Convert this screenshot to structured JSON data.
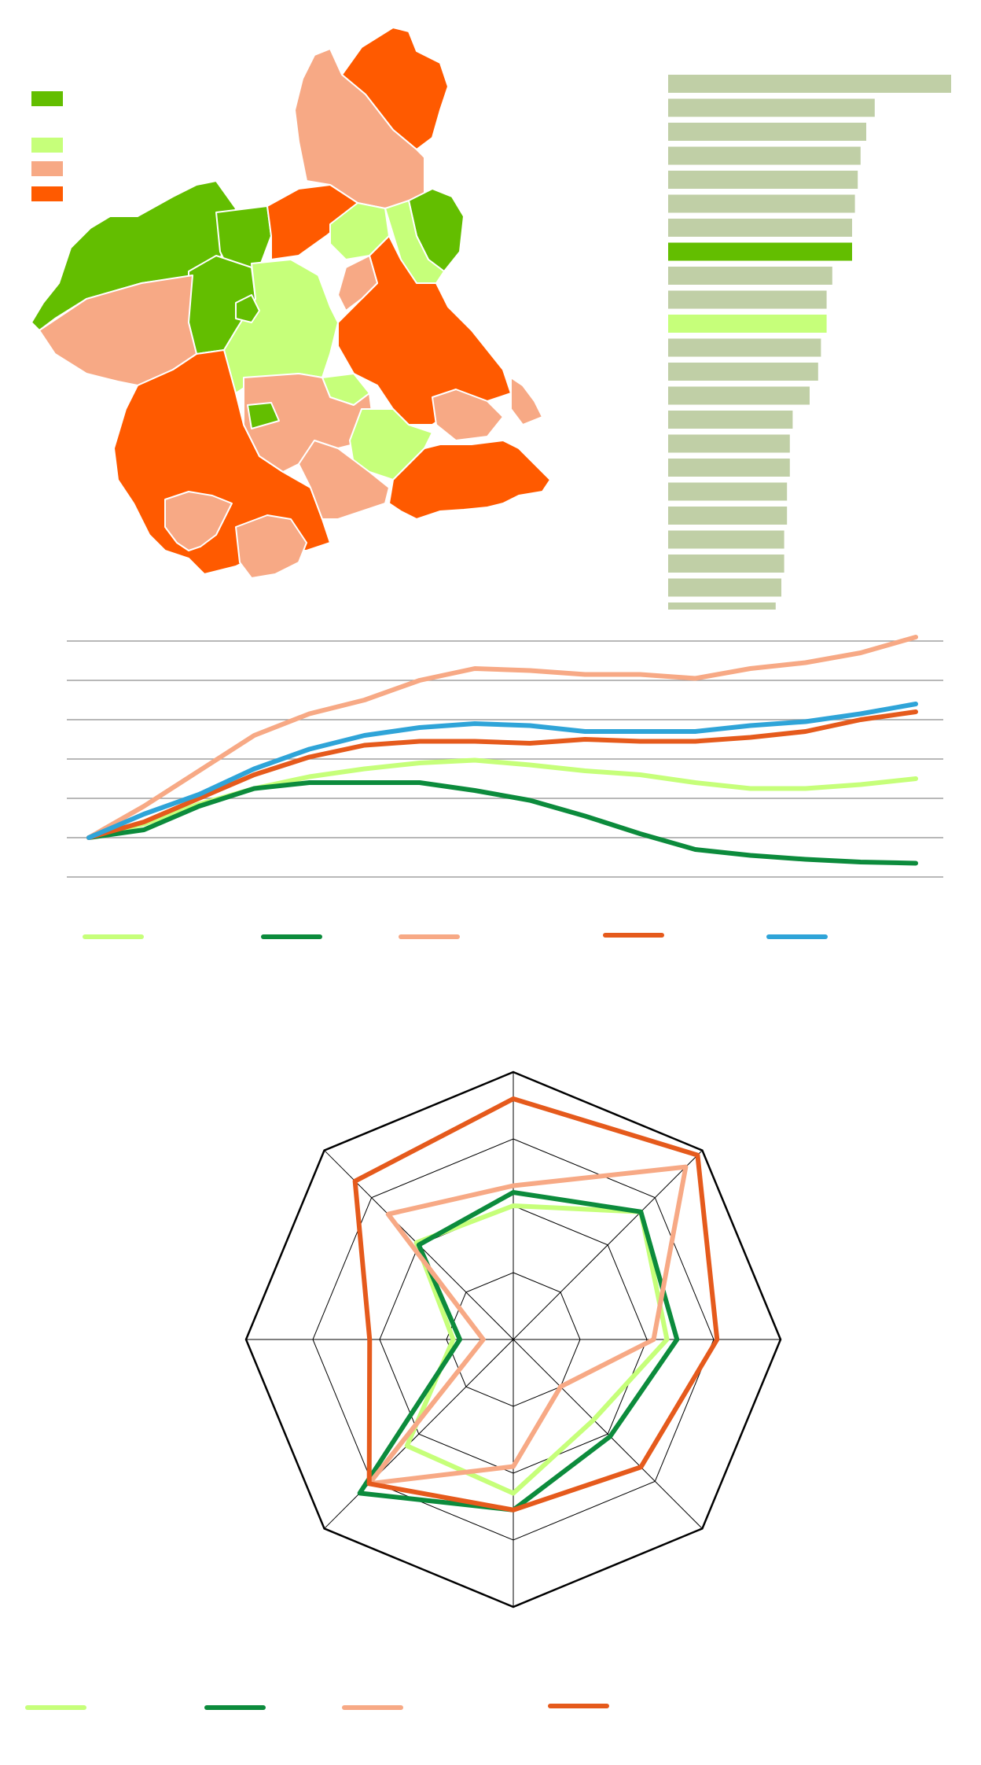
{
  "colors": {
    "dark_green": "#63be00",
    "light_green": "#c6ff7a",
    "salmon": "#f7a985",
    "orange": "#ff5a00",
    "bar_default": "#c0cfa6",
    "bar_highlight_dark": "#63be00",
    "bar_highlight_light": "#c6ff7a",
    "line_light_green": "#c6ff7a",
    "line_dark_green": "#0c8b3c",
    "line_salmon": "#f7a985",
    "line_orange": "#e55a1c",
    "line_blue": "#2fa4d8",
    "grid": "#a0a0a0",
    "map_border": "#ffffff",
    "radar_frame": "#000000"
  },
  "map": {
    "legend": [
      {
        "color_key": "dark_green",
        "label": ""
      },
      {
        "color_key": "light_green",
        "label": ""
      },
      {
        "color_key": "salmon",
        "label": ""
      },
      {
        "color_key": "orange",
        "label": ""
      }
    ]
  },
  "chart_data": [
    {
      "type": "bar",
      "orientation": "horizontal",
      "categories": [
        "",
        "",
        "",
        "",
        "",
        "",
        "",
        "",
        "",
        "",
        "",
        "",
        "",
        "",
        "",
        "",
        "",
        "",
        "",
        "",
        "",
        "",
        ""
      ],
      "values": [
        100,
        73,
        70,
        68,
        67,
        66,
        65,
        65,
        58,
        56,
        56,
        54,
        53,
        50,
        44,
        43,
        43,
        42,
        42,
        41,
        41,
        40,
        38
      ],
      "highlight": {
        "7": "bar_highlight_dark",
        "10": "bar_highlight_light"
      },
      "xlim": [
        0,
        100
      ],
      "title": "",
      "xlabel": "",
      "ylabel": ""
    },
    {
      "type": "line",
      "x": [
        0,
        1,
        2,
        3,
        4,
        5,
        6,
        7,
        8,
        9,
        10,
        11,
        12,
        13,
        14,
        15
      ],
      "series": [
        {
          "color_key": "line_light_green",
          "values": [
            0,
            3.5,
            8.5,
            12.5,
            15.5,
            17.5,
            19,
            19.7,
            18.5,
            17,
            16,
            14,
            12.5,
            12.5,
            13.5,
            15
          ]
        },
        {
          "color_key": "line_dark_green",
          "values": [
            0,
            2,
            8,
            12.5,
            14,
            14,
            14,
            12,
            9.5,
            5.5,
            1,
            -3,
            -4.5,
            -5.5,
            -6.2,
            -6.5
          ]
        },
        {
          "color_key": "line_salmon",
          "values": [
            0,
            8,
            17,
            26,
            31.5,
            35,
            40,
            43,
            42.5,
            41.5,
            41.5,
            40.5,
            43,
            44.5,
            47,
            51
          ]
        },
        {
          "color_key": "line_orange",
          "values": [
            0,
            4,
            10,
            16,
            20.5,
            23.5,
            24.5,
            24.5,
            24,
            25,
            24.5,
            24.5,
            25.5,
            27,
            30,
            32
          ]
        },
        {
          "color_key": "line_blue",
          "values": [
            0,
            6,
            11,
            17.5,
            22.5,
            26,
            28,
            29,
            28.5,
            27,
            27,
            27,
            28.5,
            29.5,
            31.5,
            34
          ]
        }
      ],
      "ylim": [
        -10,
        50
      ],
      "yticks": [
        -10,
        0,
        10,
        20,
        30,
        40,
        50
      ],
      "grid": true,
      "legend_position": "bottom",
      "title": "",
      "xlabel": "",
      "ylabel": ""
    },
    {
      "type": "radar",
      "axes": [
        "",
        "",
        "",
        "",
        "",
        "",
        "",
        ""
      ],
      "rmax": 8,
      "rings": [
        2,
        4,
        6,
        8
      ],
      "series": [
        {
          "color_key": "line_light_green",
          "values": [
            4,
            5.4,
            4.6,
            3.4,
            4.6,
            4.5,
            1.8,
            4.1
          ]
        },
        {
          "color_key": "line_dark_green",
          "values": [
            4.4,
            5.4,
            4.9,
            4.1,
            5.1,
            6.5,
            1.6,
            4.0
          ]
        },
        {
          "color_key": "line_salmon",
          "values": [
            4.6,
            7.3,
            4.2,
            2.0,
            3.8,
            6.1,
            0.9,
            5.3
          ]
        },
        {
          "color_key": "line_orange",
          "values": [
            7.2,
            7.8,
            6.1,
            5.4,
            5.1,
            6.1,
            4.3,
            6.7
          ]
        }
      ],
      "legend_position": "bottom",
      "title": ""
    }
  ]
}
